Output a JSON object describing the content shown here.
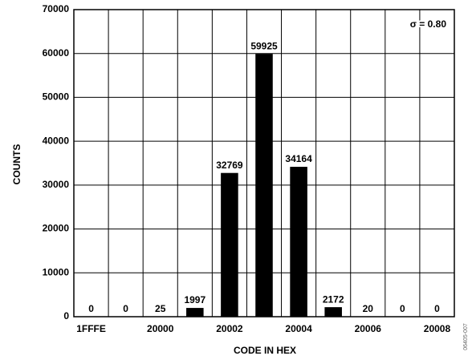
{
  "chart_data": {
    "type": "bar",
    "categories": [
      "1FFFE",
      null,
      "20000",
      null,
      "20002",
      null,
      "20004",
      null,
      "20006",
      null,
      "20008"
    ],
    "values": [
      0,
      0,
      25,
      1997,
      32769,
      59925,
      34164,
      2172,
      20,
      0,
      0
    ],
    "color": "#000000",
    "ylim": [
      0,
      70000
    ],
    "yticks": [
      0,
      10000,
      20000,
      30000,
      40000,
      50000,
      60000,
      70000
    ],
    "grid": true,
    "xlabel": "CODE IN HEX",
    "ylabel": "COUNTS",
    "annotation": "σ = 0.80",
    "figure_id": "06405-007"
  }
}
